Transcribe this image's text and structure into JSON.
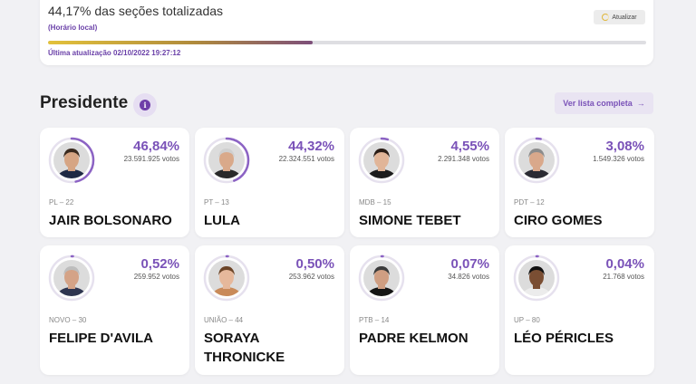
{
  "status": {
    "title": "44,17% das seções totalizadas",
    "subtitle": "(Horário local)",
    "refresh_label": "Atualizar",
    "progress": 0.4417,
    "last_update": "Última atualização 02/10/2022 19:27:12"
  },
  "section": {
    "title": "Presidente",
    "info_icon": "i",
    "list_button": "Ver lista completa",
    "arrow": "→"
  },
  "candidates": [
    {
      "party": "PL – 22",
      "name": "JAIR BOLSONARO",
      "percent": "46,84%",
      "votes": "23.591.925 votos",
      "share": 0.4684,
      "skin": "#d6a584",
      "hair": "#3a2a1f",
      "shirt": "#1f2a44"
    },
    {
      "party": "PT – 13",
      "name": "LULA",
      "percent": "44,32%",
      "votes": "22.324.551 votos",
      "share": 0.4432,
      "skin": "#d9a98a",
      "hair": "#cfcfcf",
      "shirt": "#2a2a2a"
    },
    {
      "party": "MDB – 15",
      "name": "SIMONE TEBET",
      "percent": "4,55%",
      "votes": "2.291.348 votos",
      "share": 0.0455,
      "skin": "#e1b598",
      "hair": "#2a1d16",
      "shirt": "#1c1c1c"
    },
    {
      "party": "PDT – 12",
      "name": "CIRO GOMES",
      "percent": "3,08%",
      "votes": "1.549.326 votos",
      "share": 0.0308,
      "skin": "#d9a88b",
      "hair": "#8c8c8c",
      "shirt": "#2b2b33"
    },
    {
      "party": "NOVO – 30",
      "name": "FELIPE D'AVILA",
      "percent": "0,52%",
      "votes": "259.952 votos",
      "share": 0.0052,
      "skin": "#d4a387",
      "hair": "#bdbdbd",
      "shirt": "#2e3550"
    },
    {
      "party": "UNIÃO – 44",
      "name": "SORAYA THRONICKE",
      "percent": "0,50%",
      "votes": "253.962 votos",
      "share": 0.005,
      "skin": "#e6b89b",
      "hair": "#6b4427",
      "shirt": "#c98a5a"
    },
    {
      "party": "PTB – 14",
      "name": "PADRE KELMON",
      "percent": "0,07%",
      "votes": "34.826 votos",
      "share": 0.0007,
      "skin": "#cf9e82",
      "hair": "#3b3b3b",
      "shirt": "#151515"
    },
    {
      "party": "UP – 80",
      "name": "LÉO PÉRICLES",
      "percent": "0,04%",
      "votes": "21.768 votos",
      "share": 0.0004,
      "skin": "#7a4e33",
      "hair": "#111111",
      "shirt": "#ececec"
    }
  ],
  "colors": {
    "accent": "#7a52b8",
    "ring": "#8c63c4",
    "ring_track": "#e6e1ee"
  }
}
